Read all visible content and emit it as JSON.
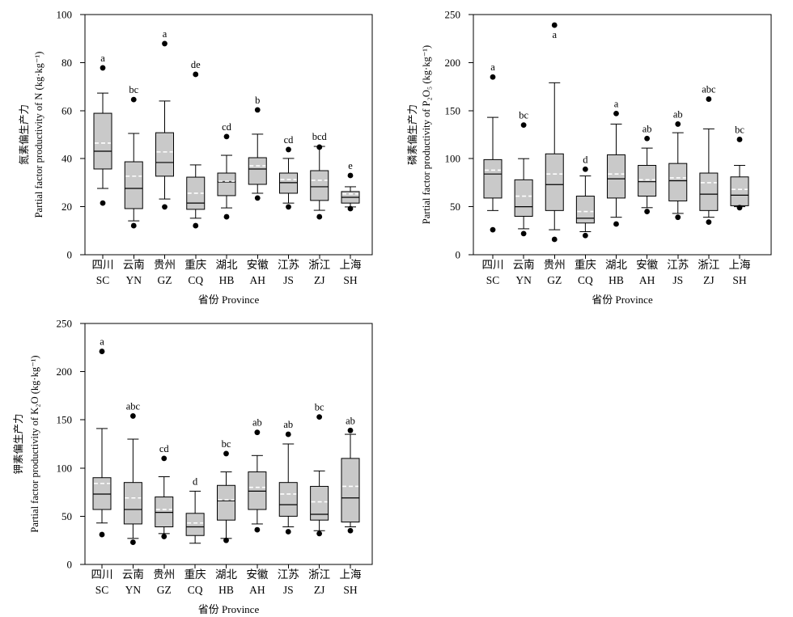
{
  "colors": {
    "box_fill": "#c9c9c9",
    "ink": "#000000",
    "mean_line": "#ffffff"
  },
  "chart_data": [
    {
      "type": "box",
      "ylabel_zh": "氮素偏生产力",
      "ylabel_en": "Partial factor productivity of N (kg·kg⁻¹)",
      "xlabel": "省份 Province",
      "ylim": [
        0,
        100
      ],
      "yticks": [
        0,
        20,
        40,
        60,
        80,
        100
      ],
      "categories": [
        {
          "zh": "四川",
          "code": "SC"
        },
        {
          "zh": "云南",
          "code": "YN"
        },
        {
          "zh": "贵州",
          "code": "GZ"
        },
        {
          "zh": "重庆",
          "code": "CQ"
        },
        {
          "zh": "湖北",
          "code": "HB"
        },
        {
          "zh": "安徽",
          "code": "AH"
        },
        {
          "zh": "江苏",
          "code": "JS"
        },
        {
          "zh": "浙江",
          "code": "ZJ"
        },
        {
          "zh": "上海",
          "code": "SH"
        }
      ],
      "boxes": [
        {
          "whisker_low": 27.6,
          "q1": 35.7,
          "median": 43.1,
          "mean": 46.5,
          "q3": 58.9,
          "whisker_high": 67.3,
          "outliers": [
            21.5,
            77.8
          ],
          "letter": "a"
        },
        {
          "whisker_low": 14.1,
          "q1": 19.2,
          "median": 27.6,
          "mean": 32.7,
          "q3": 38.7,
          "whisker_high": 50.5,
          "outliers": [
            12.1,
            64.6
          ],
          "letter": "bc"
        },
        {
          "whisker_low": 23.2,
          "q1": 32.7,
          "median": 38.4,
          "mean": 42.8,
          "q3": 50.8,
          "whisker_high": 64.0,
          "outliers": [
            19.9,
            87.9
          ],
          "letter": "a"
        },
        {
          "whisker_low": 15.2,
          "q1": 18.9,
          "median": 21.5,
          "mean": 25.6,
          "q3": 32.3,
          "whisker_high": 37.4,
          "outliers": [
            12.1,
            75.1
          ],
          "letter": "de"
        },
        {
          "whisker_low": 19.5,
          "q1": 24.6,
          "median": 30.3,
          "mean": 30.6,
          "q3": 34.0,
          "whisker_high": 41.4,
          "outliers": [
            15.8,
            49.2
          ],
          "letter": "cd"
        },
        {
          "whisker_low": 25.6,
          "q1": 29.3,
          "median": 35.7,
          "mean": 37.0,
          "q3": 40.4,
          "whisker_high": 50.2,
          "outliers": [
            23.6,
            60.3
          ],
          "letter": "b"
        },
        {
          "whisker_low": 21.5,
          "q1": 25.6,
          "median": 30.0,
          "mean": 31.3,
          "q3": 34.0,
          "whisker_high": 40.1,
          "outliers": [
            19.9,
            43.8
          ],
          "letter": "cd"
        },
        {
          "whisker_low": 18.5,
          "q1": 22.6,
          "median": 28.3,
          "mean": 31.0,
          "q3": 35.0,
          "whisker_high": 45.1,
          "outliers": [
            15.8,
            44.8
          ],
          "letter": "bcd"
        },
        {
          "whisker_low": 19.9,
          "q1": 21.5,
          "median": 23.9,
          "mean": 25.3,
          "q3": 26.3,
          "whisker_high": 28.3,
          "outliers": [
            19.2,
            33.0
          ],
          "letter": "e"
        }
      ]
    },
    {
      "type": "box",
      "ylabel_zh": "磷素偏生产力",
      "ylabel_en": "Partial factor productivity of P₂O₅ (kg·kg⁻¹)",
      "xlabel": "省份 Province",
      "ylim": [
        0,
        250
      ],
      "yticks": [
        0,
        50,
        100,
        150,
        200,
        250
      ],
      "categories": [
        {
          "zh": "四川",
          "code": "SC"
        },
        {
          "zh": "云南",
          "code": "YN"
        },
        {
          "zh": "贵州",
          "code": "GZ"
        },
        {
          "zh": "重庆",
          "code": "CQ"
        },
        {
          "zh": "湖北",
          "code": "HB"
        },
        {
          "zh": "安徽",
          "code": "AH"
        },
        {
          "zh": "江苏",
          "code": "JS"
        },
        {
          "zh": "浙江",
          "code": "ZJ"
        },
        {
          "zh": "上海",
          "code": "SH"
        }
      ],
      "boxes": [
        {
          "whisker_low": 46,
          "q1": 59,
          "median": 84,
          "mean": 88,
          "q3": 99,
          "whisker_high": 143,
          "outliers": [
            26,
            185
          ],
          "letter": "a"
        },
        {
          "whisker_low": 27,
          "q1": 40,
          "median": 50,
          "mean": 61,
          "q3": 78,
          "whisker_high": 100,
          "outliers": [
            22,
            135
          ],
          "letter": "bc"
        },
        {
          "whisker_low": 26,
          "q1": 46,
          "median": 73,
          "mean": 84,
          "q3": 105,
          "whisker_high": 179,
          "outliers": [
            16,
            239
          ],
          "letter": "a"
        },
        {
          "whisker_low": 24,
          "q1": 33,
          "median": 38,
          "mean": 45,
          "q3": 61,
          "whisker_high": 82,
          "outliers": [
            20,
            89
          ],
          "letter": "d"
        },
        {
          "whisker_low": 39,
          "q1": 59,
          "median": 79,
          "mean": 84,
          "q3": 104,
          "whisker_high": 136,
          "outliers": [
            32,
            147
          ],
          "letter": "a"
        },
        {
          "whisker_low": 49,
          "q1": 61,
          "median": 76,
          "mean": 78,
          "q3": 93,
          "whisker_high": 111,
          "outliers": [
            45,
            121
          ],
          "letter": "ab"
        },
        {
          "whisker_low": 43,
          "q1": 56,
          "median": 77,
          "mean": 80,
          "q3": 95,
          "whisker_high": 127,
          "outliers": [
            39,
            136
          ],
          "letter": "ab"
        },
        {
          "whisker_low": 39,
          "q1": 46,
          "median": 63,
          "mean": 75,
          "q3": 85,
          "whisker_high": 131,
          "outliers": [
            34,
            162
          ],
          "letter": "abc"
        },
        {
          "whisker_low": 50,
          "q1": 51,
          "median": 62,
          "mean": 68,
          "q3": 81,
          "whisker_high": 93,
          "outliers": [
            49,
            120
          ],
          "letter": "bc"
        }
      ]
    },
    {
      "type": "box",
      "ylabel_zh": "钾素偏生产力",
      "ylabel_en": "Partial factor productivity of K₂O (kg·kg⁻¹)",
      "xlabel": "省份 Province",
      "ylim": [
        0,
        250
      ],
      "yticks": [
        0,
        50,
        100,
        150,
        200,
        250
      ],
      "categories": [
        {
          "zh": "四川",
          "code": "SC"
        },
        {
          "zh": "云南",
          "code": "YN"
        },
        {
          "zh": "贵州",
          "code": "GZ"
        },
        {
          "zh": "重庆",
          "code": "CQ"
        },
        {
          "zh": "湖北",
          "code": "HB"
        },
        {
          "zh": "安徽",
          "code": "AH"
        },
        {
          "zh": "江苏",
          "code": "JS"
        },
        {
          "zh": "浙江",
          "code": "ZJ"
        },
        {
          "zh": "上海",
          "code": "SH"
        }
      ],
      "boxes": [
        {
          "whisker_low": 43,
          "q1": 57,
          "median": 73,
          "mean": 84,
          "q3": 90,
          "whisker_high": 141,
          "outliers": [
            31,
            221
          ],
          "letter": "a"
        },
        {
          "whisker_low": 27,
          "q1": 42,
          "median": 57,
          "mean": 69,
          "q3": 85,
          "whisker_high": 130,
          "outliers": [
            23,
            154
          ],
          "letter": "abc"
        },
        {
          "whisker_low": 32,
          "q1": 39,
          "median": 54,
          "mean": 57,
          "q3": 70,
          "whisker_high": 91,
          "outliers": [
            29,
            110
          ],
          "letter": "cd"
        },
        {
          "whisker_low": 22,
          "q1": 30,
          "median": 39,
          "mean": 43,
          "q3": 53,
          "whisker_high": 76,
          "outliers": [],
          "letter": "d"
        },
        {
          "whisker_low": 27,
          "q1": 46,
          "median": 66,
          "mean": 67,
          "q3": 82,
          "whisker_high": 96,
          "outliers": [
            25,
            115
          ],
          "letter": "bc"
        },
        {
          "whisker_low": 42,
          "q1": 57,
          "median": 76,
          "mean": 80,
          "q3": 96,
          "whisker_high": 113,
          "outliers": [
            36,
            137
          ],
          "letter": "ab"
        },
        {
          "whisker_low": 39,
          "q1": 50,
          "median": 62,
          "mean": 73,
          "q3": 85,
          "whisker_high": 125,
          "outliers": [
            34,
            135
          ],
          "letter": "ab"
        },
        {
          "whisker_low": 35,
          "q1": 46,
          "median": 52,
          "mean": 65,
          "q3": 81,
          "whisker_high": 97,
          "outliers": [
            32,
            153
          ],
          "letter": "bc"
        },
        {
          "whisker_low": 39,
          "q1": 44,
          "median": 69,
          "mean": 81,
          "q3": 110,
          "whisker_high": 135,
          "outliers": [
            35,
            139
          ],
          "letter": "ab"
        }
      ]
    }
  ]
}
